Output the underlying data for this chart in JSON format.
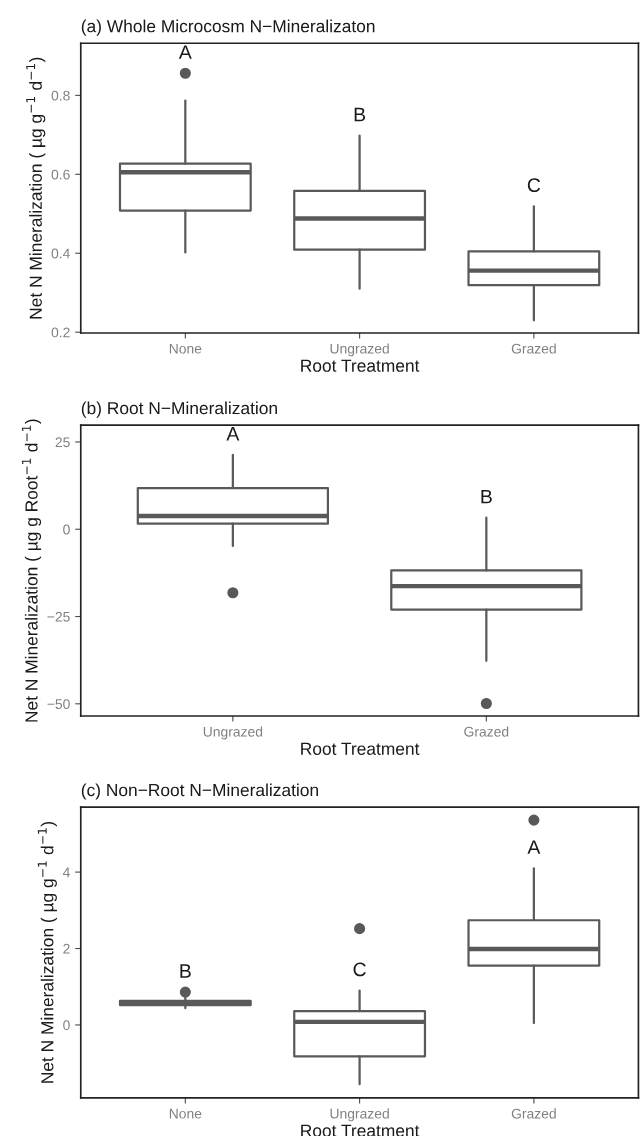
{
  "chart_data": [
    {
      "type": "box",
      "title": "(a) Whole Microcosm N−Mineralizaton",
      "xlabel": "Root Treatment",
      "ylabel": "Net N Mineralization ( µg g$^{−1}$ d$^{−1}$)",
      "categories": [
        "None",
        "Ungrazed",
        "Grazed"
      ],
      "series": [
        {
          "color": "#595959",
          "boxes": [
            {
              "low": 0.402,
              "q1": 0.508,
              "median": 0.605,
              "q3": 0.627,
              "high": 0.787,
              "outliers": [
                0.856
              ]
            },
            {
              "low": 0.31,
              "q1": 0.409,
              "median": 0.488,
              "q3": 0.558,
              "high": 0.698
            },
            {
              "low": 0.23,
              "q1": 0.319,
              "median": 0.356,
              "q3": 0.405,
              "high": 0.519
            }
          ]
        }
      ],
      "ylim": [
        0.198,
        0.932
      ],
      "yticks": [
        0.2,
        0.4,
        0.6,
        0.8
      ],
      "annotations": [
        "A",
        "B",
        "C"
      ]
    },
    {
      "type": "box",
      "title": "(b) Root N−Mineralization",
      "xlabel": "Root Treatment",
      "ylabel": "Net N Mineralization ( µg g Root$^{−1}$ d$^{−1}$)",
      "categories": [
        "Ungrazed",
        "Grazed"
      ],
      "series": [
        {
          "color": "#595959",
          "boxes": [
            {
              "low": -4.8,
              "q1": 1.6,
              "median": 3.8,
              "q3": 11.8,
              "high": 21.3,
              "outliers": [
                -18.2
              ]
            },
            {
              "low": -37.7,
              "q1": -23.0,
              "median": -16.3,
              "q3": -11.8,
              "high": 3.3,
              "outliers": [
                -49.9
              ]
            }
          ]
        }
      ],
      "ylim": [
        -53.5,
        29.8
      ],
      "yticks": [
        {
          "value": -50,
          "label": "−50"
        },
        {
          "value": -25,
          "label": "−25"
        },
        0,
        25
      ],
      "annotations": [
        "A",
        "B"
      ]
    },
    {
      "type": "box",
      "title": "(c) Non−Root N−Mineralization",
      "xlabel": "Root Treatment",
      "ylabel": "Net N Mineralization ( µg g$^{−1}$ d$^{−1}$)",
      "categories": [
        "None",
        "Ungrazed",
        "Grazed"
      ],
      "series": [
        {
          "color": "#595959",
          "boxes": [
            {
              "low": 0.44,
              "q1": 0.52,
              "median": 0.58,
              "q3": 0.63,
              "high": 0.71,
              "outliers": [
                0.86
              ]
            },
            {
              "low": -1.55,
              "q1": -0.82,
              "median": 0.08,
              "q3": 0.36,
              "high": 0.9,
              "outliers": [
                2.52
              ]
            },
            {
              "low": 0.05,
              "q1": 1.55,
              "median": 1.99,
              "q3": 2.74,
              "high": 4.1,
              "outliers": [
                5.36
              ]
            }
          ]
        }
      ],
      "ylim": [
        -1.91,
        5.7
      ],
      "yticks": [
        0,
        2,
        4
      ],
      "annotations": [
        "B",
        "C",
        "A"
      ]
    }
  ]
}
